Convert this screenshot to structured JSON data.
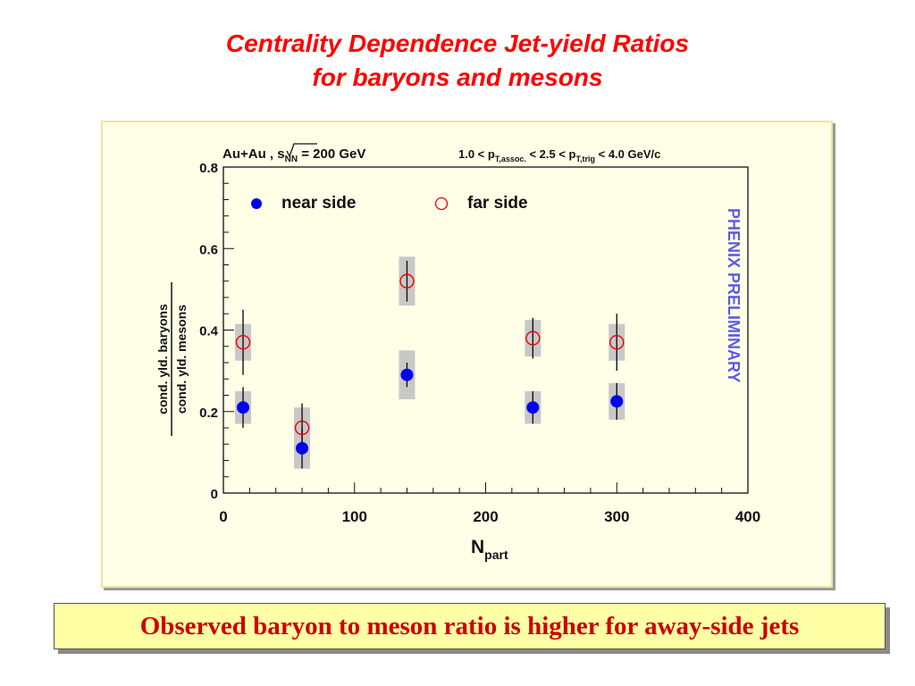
{
  "slide": {
    "title_line1": "Centrality Dependence Jet-yield Ratios",
    "title_line2": "for baryons and mesons",
    "caption": "Observed baryon to meson ratio is higher for away-side jets"
  },
  "chart_data": {
    "type": "scatter",
    "title": "",
    "header_left_prefix": "Au+Au , ",
    "header_left_sqrt": "s",
    "header_left_sub": "NN",
    "header_left_suffix": " = 200 GeV",
    "header_right_1": "1.0 < p",
    "header_right_sub1": "T,assoc.",
    "header_right_2": " < 2.5 < p",
    "header_right_sub2": "T,trig",
    "header_right_3": " < 4.0 GeV/c",
    "xlabel": "N",
    "xlabel_sub": "part",
    "ylabel_numerator": "cond. yld. baryons",
    "ylabel_denominator": "cond. yld. mesons",
    "xlim": [
      0,
      400
    ],
    "ylim": [
      0,
      0.8
    ],
    "x_ticks": [
      "0",
      "100",
      "200",
      "300",
      "400"
    ],
    "y_ticks": [
      "0",
      "0.2",
      "0.4",
      "0.6",
      "0.8"
    ],
    "watermark": "PHENIX PRELIMINARY",
    "legend_position": "top",
    "grid": false,
    "series": [
      {
        "name": "near side",
        "marker": "filled-circle",
        "color": "#0000ee",
        "points": [
          {
            "x": 15,
            "y": 0.21,
            "stat_err": 0.05,
            "sys_err": 0.04
          },
          {
            "x": 60,
            "y": 0.11,
            "stat_err": 0.05,
            "sys_err": 0.05
          },
          {
            "x": 140,
            "y": 0.29,
            "stat_err": 0.03,
            "sys_err": 0.06
          },
          {
            "x": 236,
            "y": 0.21,
            "stat_err": 0.04,
            "sys_err": 0.04
          },
          {
            "x": 300,
            "y": 0.225,
            "stat_err": 0.045,
            "sys_err": 0.045
          }
        ]
      },
      {
        "name": "far side",
        "marker": "open-circle",
        "color": "#ee0000",
        "points": [
          {
            "x": 15,
            "y": 0.37,
            "stat_err": 0.08,
            "sys_err": 0.045
          },
          {
            "x": 60,
            "y": 0.16,
            "stat_err": 0.06,
            "sys_err": 0.05
          },
          {
            "x": 140,
            "y": 0.52,
            "stat_err": 0.05,
            "sys_err": 0.06
          },
          {
            "x": 236,
            "y": 0.38,
            "stat_err": 0.05,
            "sys_err": 0.045
          },
          {
            "x": 300,
            "y": 0.37,
            "stat_err": 0.07,
            "sys_err": 0.045
          }
        ]
      }
    ]
  }
}
